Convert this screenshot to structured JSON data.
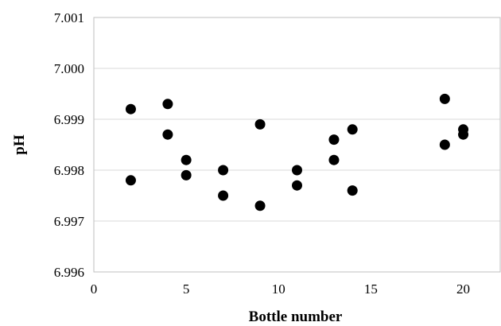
{
  "chart_data": {
    "type": "scatter",
    "title": "",
    "xlabel": "Bottle number",
    "ylabel": "pH",
    "xlim": [
      0,
      22
    ],
    "ylim": [
      6.996,
      7.001
    ],
    "x_ticks": [
      0,
      5,
      10,
      15,
      20
    ],
    "y_ticks": [
      6.996,
      6.997,
      6.998,
      6.999,
      7.0,
      7.001
    ],
    "x_tick_labels": [
      "0",
      "5",
      "10",
      "15",
      "20"
    ],
    "y_tick_labels": [
      "6.996",
      "6.997",
      "6.998",
      "6.999",
      "7.000",
      "7.001"
    ],
    "grid": "horizontal",
    "legend": "none",
    "marker_color": "#000000",
    "grid_color": "#d9d9d9",
    "series": [
      {
        "points": [
          {
            "x": 2,
            "y": 6.9992
          },
          {
            "x": 2,
            "y": 6.9978
          },
          {
            "x": 4,
            "y": 6.9993
          },
          {
            "x": 4,
            "y": 6.9987
          },
          {
            "x": 5,
            "y": 6.9982
          },
          {
            "x": 5,
            "y": 6.9979
          },
          {
            "x": 7,
            "y": 6.998
          },
          {
            "x": 7,
            "y": 6.9975
          },
          {
            "x": 9,
            "y": 6.9989
          },
          {
            "x": 9,
            "y": 6.9973
          },
          {
            "x": 11,
            "y": 6.998
          },
          {
            "x": 11,
            "y": 6.9977
          },
          {
            "x": 13,
            "y": 6.9986
          },
          {
            "x": 13,
            "y": 6.9982
          },
          {
            "x": 14,
            "y": 6.9988
          },
          {
            "x": 14,
            "y": 6.9976
          },
          {
            "x": 19,
            "y": 6.9994
          },
          {
            "x": 19,
            "y": 6.9985
          },
          {
            "x": 20,
            "y": 6.9988
          },
          {
            "x": 20,
            "y": 6.9987
          }
        ]
      }
    ]
  }
}
